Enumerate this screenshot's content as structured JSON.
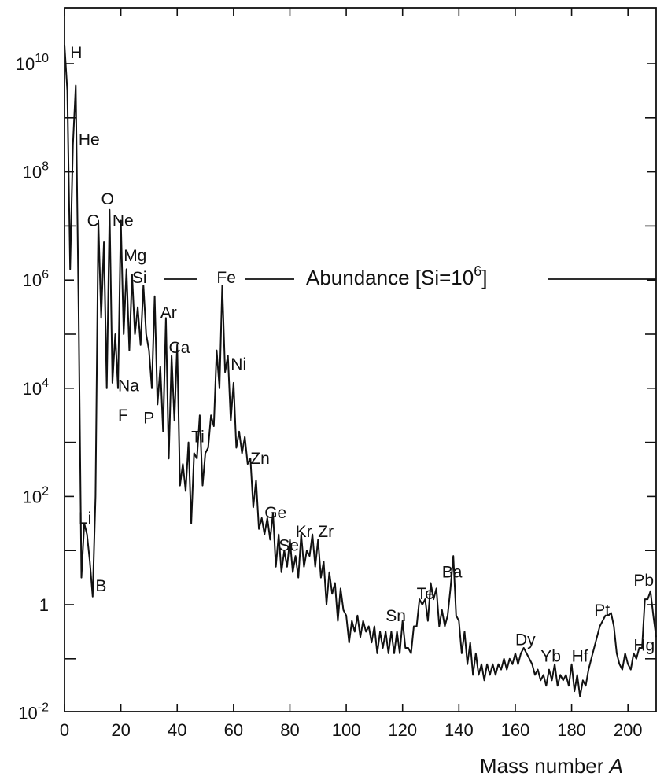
{
  "chart_data": {
    "type": "line",
    "title": "",
    "xlabel": "Mass number",
    "xlabel_var": "A",
    "ylabel": "",
    "xlim": [
      0,
      210
    ],
    "ylim_log10": [
      -2,
      10.5
    ],
    "y_scale": "log",
    "grid": false,
    "line_color": "#111111",
    "annotation": {
      "text": "Abundance [Si=10",
      "sup": "6",
      "close": "]"
    },
    "x_ticks": [
      "0",
      "20",
      "40",
      "60",
      "80",
      "100",
      "120",
      "140",
      "160",
      "180",
      "200"
    ],
    "y_ticks": [
      {
        "base": "10",
        "exp": "-2",
        "log": -2
      },
      {
        "base": "1",
        "exp": "",
        "log": 0
      },
      {
        "base": "10",
        "exp": "2",
        "log": 2
      },
      {
        "base": "10",
        "exp": "4",
        "log": 4
      },
      {
        "base": "10",
        "exp": "6",
        "log": 6
      },
      {
        "base": "10",
        "exp": "8",
        "log": 8
      },
      {
        "base": "10",
        "exp": "10",
        "log": 10
      }
    ],
    "element_labels": [
      {
        "text": "H",
        "A": 2,
        "log": 10.2
      },
      {
        "text": "He",
        "A": 5,
        "log": 8.6
      },
      {
        "text": "C",
        "A": 8,
        "log": 7.1
      },
      {
        "text": "O",
        "A": 13,
        "log": 7.5
      },
      {
        "text": "Ne",
        "A": 17,
        "log": 7.1
      },
      {
        "text": "Mg",
        "A": 21,
        "log": 6.45
      },
      {
        "text": "Si",
        "A": 24,
        "log": 6.05
      },
      {
        "text": "Fe",
        "A": 54,
        "log": 6.05
      },
      {
        "text": "Ar",
        "A": 34,
        "log": 5.4
      },
      {
        "text": "Ca",
        "A": 37,
        "log": 4.75
      },
      {
        "text": "Ni",
        "A": 59,
        "log": 4.45
      },
      {
        "text": "Na",
        "A": 19,
        "log": 4.05
      },
      {
        "text": "F",
        "A": 19,
        "log": 3.5
      },
      {
        "text": "P",
        "A": 28,
        "log": 3.45
      },
      {
        "text": "Ti",
        "A": 45,
        "log": 3.1
      },
      {
        "text": "Zn",
        "A": 66,
        "log": 2.7
      },
      {
        "text": "Li",
        "A": 5,
        "log": 1.6
      },
      {
        "text": "Ge",
        "A": 71,
        "log": 1.7
      },
      {
        "text": "Kr",
        "A": 82,
        "log": 1.35
      },
      {
        "text": "Zr",
        "A": 90,
        "log": 1.35
      },
      {
        "text": "Se",
        "A": 76,
        "log": 1.1
      },
      {
        "text": "B",
        "A": 11,
        "log": 0.35
      },
      {
        "text": "Ba",
        "A": 134,
        "log": 0.6
      },
      {
        "text": "Te",
        "A": 125,
        "log": 0.2
      },
      {
        "text": "Pb",
        "A": 202,
        "log": 0.45
      },
      {
        "text": "Sn",
        "A": 114,
        "log": -0.2
      },
      {
        "text": "Pt",
        "A": 188,
        "log": -0.1
      },
      {
        "text": "Dy",
        "A": 160,
        "log": -0.65
      },
      {
        "text": "Hg",
        "A": 202,
        "log": -0.75
      },
      {
        "text": "Yb",
        "A": 169,
        "log": -0.95
      },
      {
        "text": "Hf",
        "A": 180,
        "log": -0.95
      }
    ],
    "series": [
      {
        "values": [
          [
            0,
            10.35
          ],
          [
            1,
            9.5
          ],
          [
            2,
            6.2
          ],
          [
            3,
            8.5
          ],
          [
            4,
            9.6
          ],
          [
            5,
            5.5
          ],
          [
            6,
            0.5
          ],
          [
            7,
            1.5
          ],
          [
            8,
            1.3
          ],
          [
            9,
            0.8
          ],
          [
            10,
            0.15
          ],
          [
            11,
            2.0
          ],
          [
            12,
            7.1
          ],
          [
            13,
            5.3
          ],
          [
            14,
            6.7
          ],
          [
            15,
            4.0
          ],
          [
            16,
            7.3
          ],
          [
            17,
            4.1
          ],
          [
            18,
            5.0
          ],
          [
            19,
            4.0
          ],
          [
            20,
            7.1
          ],
          [
            21,
            5.0
          ],
          [
            22,
            6.2
          ],
          [
            23,
            4.7
          ],
          [
            24,
            6.1
          ],
          [
            25,
            5.0
          ],
          [
            26,
            5.5
          ],
          [
            27,
            4.8
          ],
          [
            28,
            5.9
          ],
          [
            29,
            5.0
          ],
          [
            30,
            4.7
          ],
          [
            31,
            4.0
          ],
          [
            32,
            5.7
          ],
          [
            33,
            3.7
          ],
          [
            34,
            4.4
          ],
          [
            35,
            3.2
          ],
          [
            36,
            5.3
          ],
          [
            37,
            2.7
          ],
          [
            38,
            4.6
          ],
          [
            39,
            3.4
          ],
          [
            40,
            4.8
          ],
          [
            41,
            2.2
          ],
          [
            42,
            2.6
          ],
          [
            43,
            2.1
          ],
          [
            44,
            3.0
          ],
          [
            45,
            1.5
          ],
          [
            46,
            2.8
          ],
          [
            47,
            2.7
          ],
          [
            48,
            3.5
          ],
          [
            49,
            2.2
          ],
          [
            50,
            2.8
          ],
          [
            51,
            2.9
          ],
          [
            52,
            3.5
          ],
          [
            53,
            3.3
          ],
          [
            54,
            4.7
          ],
          [
            55,
            4.0
          ],
          [
            56,
            5.9
          ],
          [
            57,
            4.3
          ],
          [
            58,
            4.6
          ],
          [
            59,
            3.4
          ],
          [
            60,
            4.1
          ],
          [
            61,
            2.9
          ],
          [
            62,
            3.2
          ],
          [
            63,
            2.8
          ],
          [
            64,
            3.1
          ],
          [
            65,
            2.6
          ],
          [
            66,
            2.7
          ],
          [
            67,
            1.8
          ],
          [
            68,
            2.3
          ],
          [
            69,
            1.4
          ],
          [
            70,
            1.6
          ],
          [
            71,
            1.3
          ],
          [
            72,
            1.6
          ],
          [
            73,
            1.2
          ],
          [
            74,
            1.7
          ],
          [
            75,
            0.7
          ],
          [
            76,
            1.3
          ],
          [
            77,
            0.6
          ],
          [
            78,
            1.0
          ],
          [
            79,
            0.7
          ],
          [
            80,
            1.2
          ],
          [
            81,
            0.6
          ],
          [
            82,
            0.9
          ],
          [
            83,
            0.5
          ],
          [
            84,
            1.3
          ],
          [
            85,
            0.7
          ],
          [
            86,
            1.0
          ],
          [
            87,
            0.9
          ],
          [
            88,
            1.3
          ],
          [
            89,
            0.7
          ],
          [
            90,
            1.2
          ],
          [
            91,
            0.5
          ],
          [
            92,
            0.8
          ],
          [
            93,
            0.0
          ],
          [
            94,
            0.6
          ],
          [
            95,
            0.2
          ],
          [
            96,
            0.4
          ],
          [
            97,
            -0.3
          ],
          [
            98,
            0.3
          ],
          [
            99,
            -0.1
          ],
          [
            100,
            -0.2
          ],
          [
            101,
            -0.7
          ],
          [
            102,
            -0.3
          ],
          [
            103,
            -0.5
          ],
          [
            104,
            -0.2
          ],
          [
            105,
            -0.6
          ],
          [
            106,
            -0.3
          ],
          [
            107,
            -0.5
          ],
          [
            108,
            -0.4
          ],
          [
            109,
            -0.7
          ],
          [
            110,
            -0.4
          ],
          [
            111,
            -0.9
          ],
          [
            112,
            -0.5
          ],
          [
            113,
            -0.8
          ],
          [
            114,
            -0.5
          ],
          [
            115,
            -0.9
          ],
          [
            116,
            -0.5
          ],
          [
            117,
            -0.9
          ],
          [
            118,
            -0.5
          ],
          [
            119,
            -0.9
          ],
          [
            120,
            -0.3
          ],
          [
            121,
            -0.8
          ],
          [
            122,
            -0.8
          ],
          [
            123,
            -0.9
          ],
          [
            124,
            -0.4
          ],
          [
            125,
            -0.4
          ],
          [
            126,
            0.1
          ],
          [
            127,
            0.0
          ],
          [
            128,
            0.1
          ],
          [
            129,
            -0.3
          ],
          [
            130,
            0.4
          ],
          [
            131,
            0.1
          ],
          [
            132,
            0.3
          ],
          [
            133,
            -0.4
          ],
          [
            134,
            -0.1
          ],
          [
            135,
            -0.4
          ],
          [
            136,
            -0.2
          ],
          [
            137,
            0.3
          ],
          [
            138,
            0.9
          ],
          [
            139,
            -0.2
          ],
          [
            140,
            -0.3
          ],
          [
            141,
            -0.9
          ],
          [
            142,
            -0.5
          ],
          [
            143,
            -1.1
          ],
          [
            144,
            -0.7
          ],
          [
            145,
            -1.3
          ],
          [
            146,
            -0.9
          ],
          [
            147,
            -1.3
          ],
          [
            148,
            -1.1
          ],
          [
            149,
            -1.4
          ],
          [
            150,
            -1.1
          ],
          [
            151,
            -1.3
          ],
          [
            152,
            -1.1
          ],
          [
            153,
            -1.3
          ],
          [
            154,
            -1.1
          ],
          [
            155,
            -1.2
          ],
          [
            156,
            -1.0
          ],
          [
            157,
            -1.2
          ],
          [
            158,
            -1.0
          ],
          [
            159,
            -1.1
          ],
          [
            160,
            -0.9
          ],
          [
            161,
            -1.1
          ],
          [
            162,
            -0.9
          ],
          [
            163,
            -0.8
          ],
          [
            164,
            -0.9
          ],
          [
            165,
            -1.0
          ],
          [
            166,
            -1.1
          ],
          [
            167,
            -1.3
          ],
          [
            168,
            -1.2
          ],
          [
            169,
            -1.4
          ],
          [
            170,
            -1.3
          ],
          [
            171,
            -1.5
          ],
          [
            172,
            -1.2
          ],
          [
            173,
            -1.4
          ],
          [
            174,
            -1.1
          ],
          [
            175,
            -1.5
          ],
          [
            176,
            -1.3
          ],
          [
            177,
            -1.4
          ],
          [
            178,
            -1.3
          ],
          [
            179,
            -1.5
          ],
          [
            180,
            -1.1
          ],
          [
            181,
            -1.6
          ],
          [
            182,
            -1.3
          ],
          [
            183,
            -1.7
          ],
          [
            184,
            -1.4
          ],
          [
            185,
            -1.5
          ],
          [
            186,
            -1.2
          ],
          [
            187,
            -1.0
          ],
          [
            188,
            -0.8
          ],
          [
            189,
            -0.6
          ],
          [
            190,
            -0.4
          ],
          [
            191,
            -0.3
          ],
          [
            192,
            -0.2
          ],
          [
            193,
            -0.2
          ],
          [
            194,
            -0.15
          ],
          [
            195,
            -0.4
          ],
          [
            196,
            -0.9
          ],
          [
            197,
            -1.1
          ],
          [
            198,
            -1.2
          ],
          [
            199,
            -0.9
          ],
          [
            200,
            -1.1
          ],
          [
            201,
            -1.2
          ],
          [
            202,
            -0.9
          ],
          [
            203,
            -1.0
          ],
          [
            204,
            -0.8
          ],
          [
            205,
            -0.8
          ],
          [
            206,
            0.1
          ],
          [
            207,
            0.1
          ],
          [
            208,
            0.25
          ],
          [
            209,
            -0.2
          ],
          [
            210,
            -0.6
          ]
        ]
      }
    ]
  }
}
